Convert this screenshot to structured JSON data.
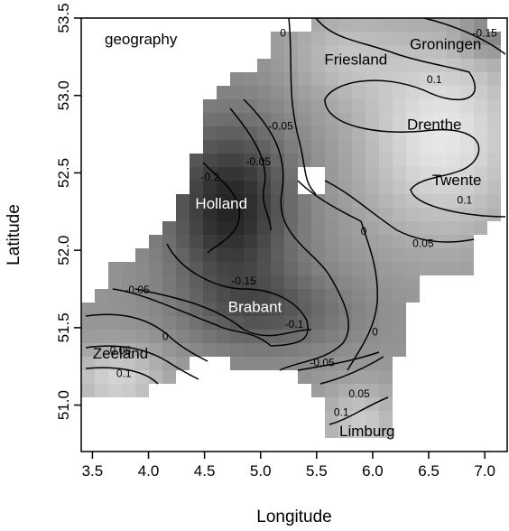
{
  "chart_data": {
    "type": "heatmap",
    "title": "geography",
    "xlabel": "Longitude",
    "ylabel": "Latitude",
    "xlim": [
      3.4,
      7.2
    ],
    "ylim": [
      50.7,
      53.5
    ],
    "x_ticks": [
      "3.5",
      "4.0",
      "4.5",
      "5.0",
      "5.5",
      "6.0",
      "6.5",
      "7.0"
    ],
    "x_tick_values": [
      3.5,
      4.0,
      4.5,
      5.0,
      5.5,
      6.0,
      6.5,
      7.0
    ],
    "y_ticks": [
      "51.0",
      "51.5",
      "52.0",
      "52.5",
      "53.0",
      "53.5"
    ],
    "y_tick_values": [
      51.0,
      51.5,
      52.0,
      52.5,
      53.0,
      53.5
    ],
    "grid": false,
    "legend": "none",
    "colormap": "grayscale (dark = low, light = high)",
    "value_range": [
      -0.25,
      0.2
    ],
    "regions": [
      {
        "name": "Groningen",
        "lon": 6.65,
        "lat": 53.3,
        "color": "#000000"
      },
      {
        "name": "Friesland",
        "lon": 5.85,
        "lat": 53.2,
        "color": "#000000"
      },
      {
        "name": "Drenthe",
        "lon": 6.55,
        "lat": 52.78,
        "color": "#000000"
      },
      {
        "name": "Twente",
        "lon": 6.75,
        "lat": 52.42,
        "color": "#000000"
      },
      {
        "name": "Holland",
        "lon": 4.65,
        "lat": 52.27,
        "color": "#ffffff"
      },
      {
        "name": "Brabant",
        "lon": 4.95,
        "lat": 51.6,
        "color": "#ffffff"
      },
      {
        "name": "Zeeland",
        "lon": 3.75,
        "lat": 51.3,
        "color": "#000000"
      },
      {
        "name": "Limburg",
        "lon": 5.95,
        "lat": 50.8,
        "color": "#000000"
      }
    ],
    "contour_labels": [
      {
        "text": "0",
        "lon": 5.2,
        "lat": 53.38
      },
      {
        "text": "-0.15",
        "lon": 7.0,
        "lat": 53.38
      },
      {
        "text": "0.1",
        "lon": 6.55,
        "lat": 53.08
      },
      {
        "text": "-0.05",
        "lon": 5.18,
        "lat": 52.78
      },
      {
        "text": "-0.05",
        "lon": 4.98,
        "lat": 52.55
      },
      {
        "text": "-0.2",
        "lon": 4.55,
        "lat": 52.45
      },
      {
        "text": "0",
        "lon": 5.92,
        "lat": 52.1
      },
      {
        "text": "0.05",
        "lon": 6.45,
        "lat": 52.02
      },
      {
        "text": "0.1",
        "lon": 6.82,
        "lat": 52.3
      },
      {
        "text": "-0.15",
        "lon": 4.85,
        "lat": 51.78
      },
      {
        "text": "-0.05",
        "lon": 3.9,
        "lat": 51.72
      },
      {
        "text": "-0.1",
        "lon": 5.3,
        "lat": 51.5
      },
      {
        "text": "0.05",
        "lon": 3.75,
        "lat": 51.33
      },
      {
        "text": "0",
        "lon": 4.15,
        "lat": 51.42
      },
      {
        "text": "0.1",
        "lon": 3.78,
        "lat": 51.18
      },
      {
        "text": "-0.05",
        "lon": 5.55,
        "lat": 51.25
      },
      {
        "text": "0",
        "lon": 6.02,
        "lat": 51.45
      },
      {
        "text": "0.05",
        "lon": 5.88,
        "lat": 51.05
      },
      {
        "text": "0.1",
        "lon": 5.72,
        "lat": 50.93
      }
    ]
  }
}
